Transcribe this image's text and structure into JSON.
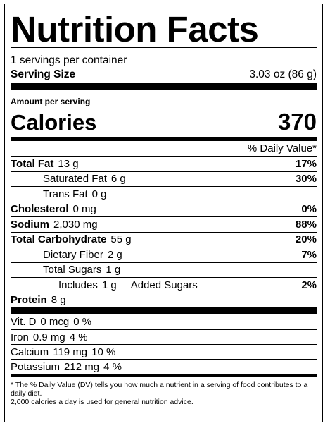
{
  "title": "Nutrition Facts",
  "servings_per_container": "1 servings per container",
  "serving_size": {
    "label": "Serving Size",
    "value": "3.03 oz (86 g)"
  },
  "amount_per_serving": "Amount per serving",
  "calories": {
    "label": "Calories",
    "value": "370"
  },
  "daily_value_header": "% Daily Value*",
  "nutrients": {
    "total_fat": {
      "label": "Total Fat",
      "amount": "13 g",
      "dv": "17%"
    },
    "saturated_fat": {
      "label": "Saturated Fat",
      "amount": "6 g",
      "dv": "30%"
    },
    "trans_fat": {
      "label": "Trans Fat",
      "amount": "0 g"
    },
    "cholesterol": {
      "label": "Cholesterol",
      "amount": "0 mg",
      "dv": "0%"
    },
    "sodium": {
      "label": "Sodium",
      "amount": "2,030 mg",
      "dv": "88%"
    },
    "total_carbohydrate": {
      "label": "Total Carbohydrate",
      "amount": "55 g",
      "dv": "20%"
    },
    "dietary_fiber": {
      "label": "Dietary Fiber",
      "amount": "2 g",
      "dv": "7%"
    },
    "total_sugars": {
      "label": "Total Sugars",
      "amount": "1 g"
    },
    "added_sugars": {
      "prefix": "Includes",
      "amount": "1 g",
      "label": "Added Sugars",
      "dv": "2%"
    },
    "protein": {
      "label": "Protein",
      "amount": "8 g"
    }
  },
  "minerals": [
    {
      "label": "Vit. D",
      "amount": "0 mcg",
      "dv": "0 %"
    },
    {
      "label": "Iron",
      "amount": "0.9 mg",
      "dv": "4 %"
    },
    {
      "label": "Calcium",
      "amount": "119 mg",
      "dv": "10 %"
    },
    {
      "label": "Potassium",
      "amount": "212 mg",
      "dv": "4 %"
    }
  ],
  "footnote": {
    "line1": "* The % Daily Value (DV) tells you how much a nutrient in a serving of food contributes to a daily diet.",
    "line2": "2,000 calories a day is used for general nutrition advice."
  }
}
